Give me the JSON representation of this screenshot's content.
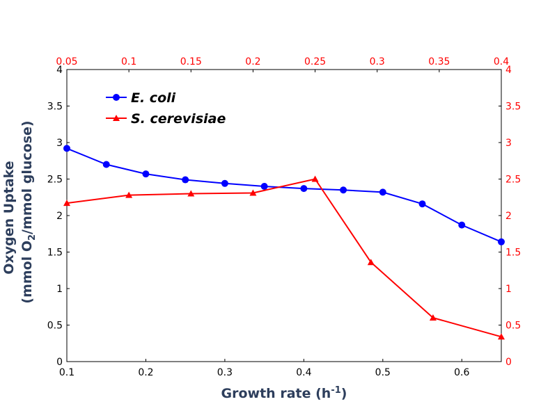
{
  "chart_data": {
    "type": "line",
    "title": "",
    "xlabel": "Growth rate (h",
    "xlabel_sup": "-1",
    "xlabel_tail": ")",
    "ylabel_line1": "Oxygen Uptake",
    "ylabel_line2_pre": "(mmol O",
    "ylabel_line2_sub": "2",
    "ylabel_line2_post": "/mmol glucose)",
    "xlim_bottom": [
      0.1,
      0.65
    ],
    "xlim_top": [
      0.05,
      0.4
    ],
    "ylim": [
      0,
      4
    ],
    "x_ticks_bottom": [
      "0.1",
      "0.2",
      "0.3",
      "0.4",
      "0.5",
      "0.6"
    ],
    "x_ticks_top": [
      "0.05",
      "0.1",
      "0.15",
      "0.2",
      "0.25",
      "0.3",
      "0.35",
      "0.4"
    ],
    "y_ticks": [
      "0",
      "0.5",
      "1",
      "1.5",
      "2",
      "2.5",
      "3",
      "3.5",
      "4"
    ],
    "legend_position": "upper-left",
    "grid": false,
    "series": [
      {
        "name": "E. coli",
        "axis": "bottom",
        "color": "#0000ff",
        "marker": "circle",
        "x": [
          0.1,
          0.15,
          0.2,
          0.25,
          0.3,
          0.35,
          0.4,
          0.45,
          0.5,
          0.55,
          0.6,
          0.65
        ],
        "y": [
          2.92,
          2.7,
          2.57,
          2.49,
          2.44,
          2.4,
          2.37,
          2.35,
          2.32,
          2.16,
          1.87,
          1.64
        ]
      },
      {
        "name": "S. cerevisiae",
        "axis": "top",
        "color": "#ff0000",
        "marker": "triangle",
        "x": [
          0.05,
          0.1,
          0.15,
          0.2,
          0.25,
          0.295,
          0.345,
          0.4
        ],
        "y": [
          2.17,
          2.28,
          2.3,
          2.31,
          2.5,
          1.36,
          0.6,
          0.34
        ]
      }
    ]
  }
}
